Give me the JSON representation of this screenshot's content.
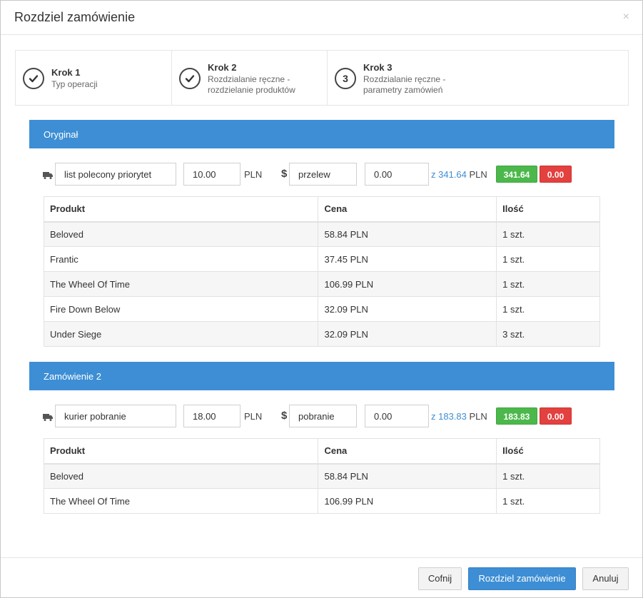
{
  "modal": {
    "title": "Rozdziel zamówienie",
    "close": "×"
  },
  "steps": [
    {
      "marker": "",
      "title": "Krok 1",
      "subtitle": "Typ operacji"
    },
    {
      "marker": "",
      "title": "Krok 2",
      "subtitle": "Rozdzialanie ręczne - rozdzielanie produktów"
    },
    {
      "marker": "3",
      "title": "Krok 3",
      "subtitle": "Rozdzialanie ręczne - parametry zamówień"
    }
  ],
  "orders": [
    {
      "title": "Oryginał",
      "shipping_method": "list polecony priorytet",
      "shipping_cost": "10.00",
      "currency": "PLN",
      "payment_method": "przelew",
      "paid_amount": "0.00",
      "total_prefix": "z 341.64",
      "total_currency": "PLN",
      "badge_paid": "341.64",
      "badge_due": "0.00",
      "table": {
        "headers": [
          "Produkt",
          "Cena",
          "Ilość"
        ],
        "rows": [
          [
            "Beloved",
            "58.84 PLN",
            "1 szt."
          ],
          [
            "Frantic",
            "37.45 PLN",
            "1 szt."
          ],
          [
            "The Wheel Of Time",
            "106.99 PLN",
            "1 szt."
          ],
          [
            "Fire Down Below",
            "32.09 PLN",
            "1 szt."
          ],
          [
            "Under Siege",
            "32.09 PLN",
            "3 szt."
          ]
        ]
      }
    },
    {
      "title": "Zamówienie 2",
      "shipping_method": "kurier pobranie",
      "shipping_cost": "18.00",
      "currency": "PLN",
      "payment_method": "pobranie",
      "paid_amount": "0.00",
      "total_prefix": "z 183.83",
      "total_currency": "PLN",
      "badge_paid": "183.83",
      "badge_due": "0.00",
      "table": {
        "headers": [
          "Produkt",
          "Cena",
          "Ilość"
        ],
        "rows": [
          [
            "Beloved",
            "58.84 PLN",
            "1 szt."
          ],
          [
            "The Wheel Of Time",
            "106.99 PLN",
            "1 szt."
          ]
        ]
      }
    }
  ],
  "footer": {
    "back": "Cofnij",
    "split": "Rozdziel zamówienie",
    "cancel": "Anuluj"
  },
  "icons": {
    "check": "check-icon",
    "truck": "truck-icon",
    "dollar": "$"
  },
  "colors": {
    "accent": "#3d8ed4",
    "success": "#4cb84c",
    "danger": "#e2413f"
  }
}
